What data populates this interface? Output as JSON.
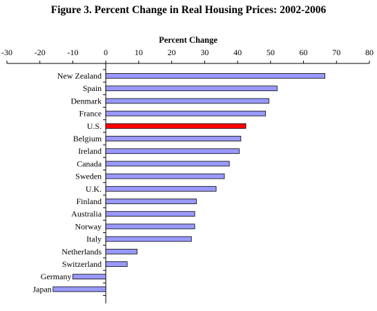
{
  "chart_data": {
    "type": "bar",
    "orientation": "horizontal",
    "title": "Figure 3. Percent Change in Real Housing Prices: 2002-2006",
    "xlabel": "Percent Change",
    "xlim": [
      -30,
      80
    ],
    "xticks": [
      -30,
      -20,
      -10,
      0,
      10,
      20,
      30,
      40,
      50,
      60,
      70,
      80
    ],
    "axis_position": "top",
    "grid": false,
    "legend": "none",
    "categories": [
      "New Zealand",
      "Spain",
      "Denmark",
      "France",
      "U.S.",
      "Belgium",
      "Ireland",
      "Canada",
      "Sweden",
      "U.K.",
      "Finland",
      "Australia",
      "Norway",
      "Italy",
      "Netherlands",
      "Switzerland",
      "Germany",
      "Japan"
    ],
    "values": [
      66.5,
      52,
      49.5,
      48.5,
      42.5,
      41,
      40.5,
      37.5,
      36,
      33.5,
      27.5,
      27,
      27,
      26,
      9.5,
      6.5,
      -10,
      -16
    ],
    "highlight_category": "U.S.",
    "colors": {
      "bar": "#9999ff",
      "highlight": "#ff0000",
      "bar_edge": "#000000",
      "axis": "#000000"
    }
  }
}
